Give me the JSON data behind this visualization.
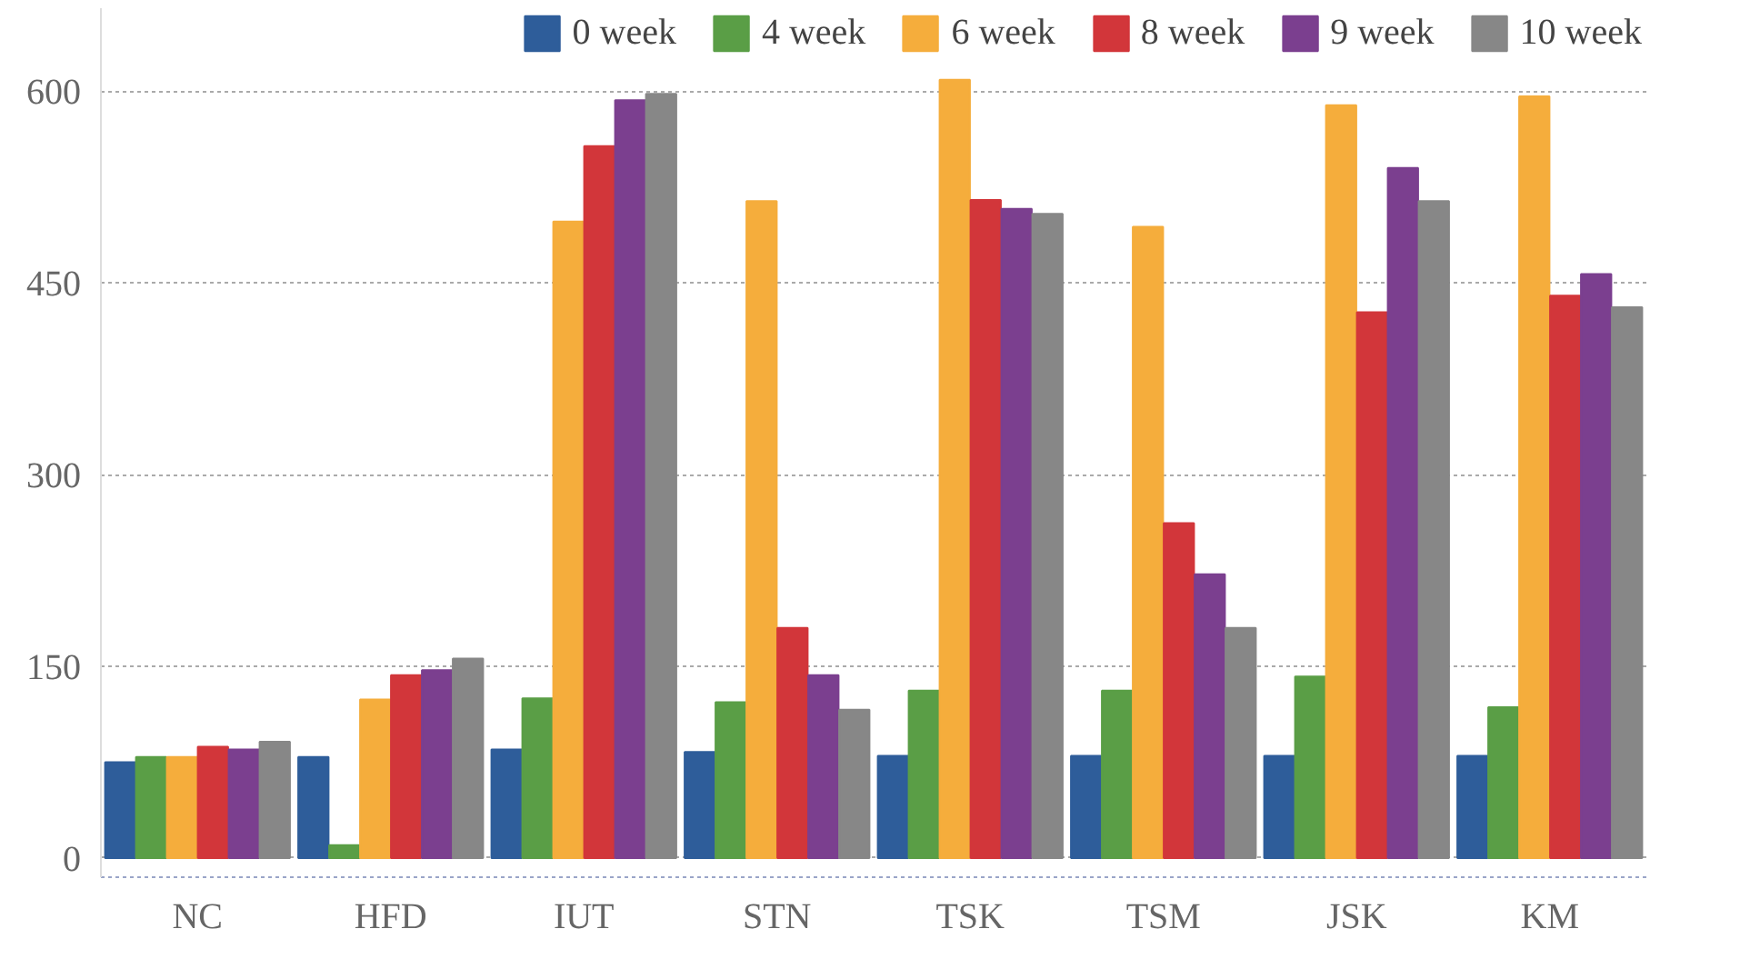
{
  "chart_data": {
    "type": "bar",
    "categories": [
      "NC",
      "HFD",
      "IUT",
      "STN",
      "TSK",
      "TSM",
      "JSK",
      "KM"
    ],
    "series": [
      {
        "name": "0 week",
        "color": "#2e5d9a",
        "values": [
          75,
          79,
          85,
          83,
          80,
          80,
          80,
          80
        ]
      },
      {
        "name": "4 week",
        "color": "#5a9e46",
        "values": [
          79,
          10,
          125,
          122,
          131,
          131,
          142,
          118
        ]
      },
      {
        "name": "6 week",
        "color": "#f5ad3c",
        "values": [
          79,
          124,
          498,
          514,
          609,
          494,
          589,
          596
        ]
      },
      {
        "name": "8 week",
        "color": "#d2363a",
        "values": [
          87,
          143,
          557,
          180,
          515,
          262,
          427,
          440
        ]
      },
      {
        "name": "9 week",
        "color": "#7b3f8f",
        "values": [
          85,
          147,
          593,
          143,
          508,
          222,
          540,
          457
        ]
      },
      {
        "name": "10 week",
        "color": "#878787",
        "values": [
          91,
          156,
          598,
          116,
          504,
          180,
          514,
          431
        ]
      }
    ],
    "ylim": [
      -15,
      665
    ],
    "yticks": [
      0,
      150,
      300,
      450,
      600
    ],
    "grid": "y",
    "legend": "top"
  }
}
